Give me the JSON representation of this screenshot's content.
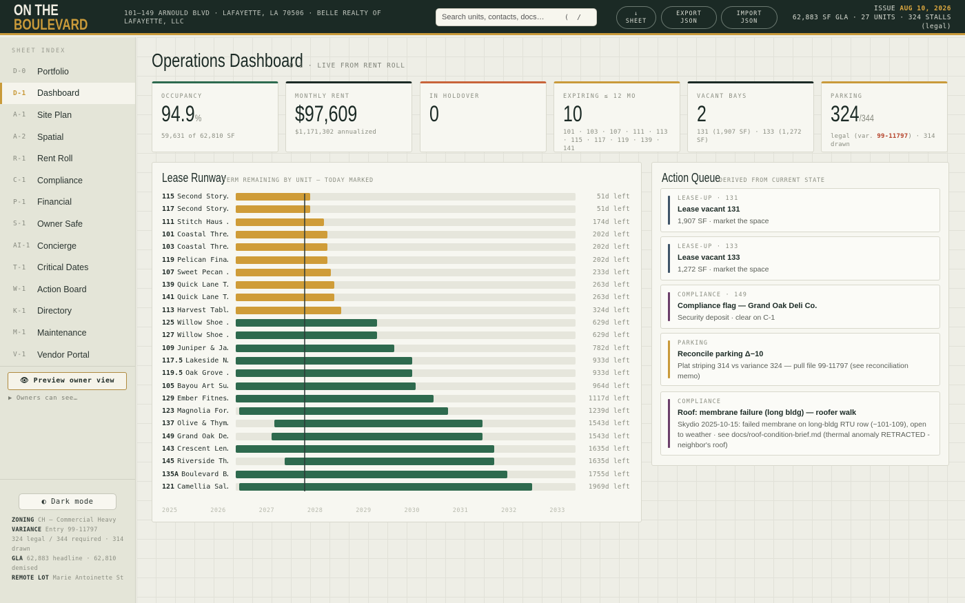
{
  "header": {
    "logo_line1": "ON THE",
    "logo_line2": "BOULEVARD",
    "address": "101–149 ARNOULD BLVD · LAFAYETTE, LA 70506 · BELLE REALTY OF LAFAYETTE, LLC",
    "search_placeholder": "Search units, contacts, docs…",
    "search_shortcut": "( /",
    "buttons": [
      {
        "line1": "↓",
        "line2": "SHEET"
      },
      {
        "line1": "EXPORT",
        "line2": "JSON"
      },
      {
        "line1": "IMPORT",
        "line2": "JSON"
      }
    ],
    "issue_label": "ISSUE",
    "issue_date": "AUG 10, 2026",
    "stats_line": "62,883 SF GLA · 27 UNITS · 324 STALLS",
    "stats_note": "(legal)"
  },
  "sidebar": {
    "heading": "SHEET INDEX",
    "items": [
      {
        "code": "D-0",
        "label": "Portfolio",
        "active": false
      },
      {
        "code": "D-1",
        "label": "Dashboard",
        "active": true
      },
      {
        "code": "A-1",
        "label": "Site Plan",
        "active": false
      },
      {
        "code": "A-2",
        "label": "Spatial",
        "active": false
      },
      {
        "code": "R-1",
        "label": "Rent Roll",
        "active": false
      },
      {
        "code": "C-1",
        "label": "Compliance",
        "active": false
      },
      {
        "code": "P-1",
        "label": "Financial",
        "active": false
      },
      {
        "code": "S-1",
        "label": "Owner Safe",
        "active": false
      },
      {
        "code": "AI-1",
        "label": "Concierge",
        "active": false
      },
      {
        "code": "T-1",
        "label": "Critical Dates",
        "active": false
      },
      {
        "code": "W-1",
        "label": "Action Board",
        "active": false
      },
      {
        "code": "K-1",
        "label": "Directory",
        "active": false
      },
      {
        "code": "M-1",
        "label": "Maintenance",
        "active": false
      },
      {
        "code": "V-1",
        "label": "Vendor Portal",
        "active": false
      }
    ],
    "preview_button": "👁 Preview owner view",
    "owners_toggle": "▶ Owners can see…",
    "dark_mode": "◐ Dark mode",
    "meta": {
      "zoning_label": "ZONING",
      "zoning_value": "CH — Commercial Heavy",
      "variance_label": "VARIANCE",
      "variance_value": "Entry 99-11797",
      "variance_detail": "324 legal / 344 required · 314 drawn",
      "gla_label": "GLA",
      "gla_value": "62,883 headline · 62,810 demised",
      "remote_label": "REMOTE LOT",
      "remote_value": "Marie Antoinette St"
    }
  },
  "page": {
    "title": "Operations Dashboard",
    "subtitle": "D-1 · LIVE FROM RENT ROLL"
  },
  "kpis": [
    {
      "label": "OCCUPANCY",
      "value": "94.9",
      "unit": "%",
      "sub": "59,631 of 62,810 SF",
      "accent": "#2d6a4f"
    },
    {
      "label": "MONTHLY RENT",
      "value": "$97,609",
      "unit": "",
      "sub": "$1,171,302 annualized",
      "accent": "#1b2a25"
    },
    {
      "label": "IN HOLDOVER",
      "value": "0",
      "unit": "",
      "sub": "",
      "accent": "#c8643a"
    },
    {
      "label": "EXPIRING ≤ 12 MO",
      "value": "10",
      "unit": "",
      "sub": "101 · 103 · 107 · 111 · 113 · 115 · 117 · 119 · 139 · 141",
      "accent": "#c99a3a"
    },
    {
      "label": "VACANT BAYS",
      "value": "2",
      "unit": "",
      "sub": "131 (1,907 SF) · 133 (1,272 SF)",
      "accent": "#1b2a25"
    },
    {
      "label": "PARKING",
      "value": "324",
      "unit": "/344",
      "sub_pre": "legal (var. ",
      "sub_red": "99-11797",
      "sub_post": ") · 314 drawn",
      "accent": "#c99a3a"
    }
  ],
  "runway": {
    "title": "Lease Runway",
    "subtitle": "TERM REMAINING BY UNIT — TODAY MARKED",
    "colors": {
      "short": "#cf9c38",
      "long": "#2e6a4e"
    },
    "years": [
      "2025",
      "2026",
      "2027",
      "2028",
      "2029",
      "2030",
      "2031",
      "2032",
      "2033"
    ],
    "rows": [
      {
        "unit": "115",
        "tenant": "Second Story…",
        "start": 0.0,
        "end": 0.22,
        "remaining": "51d left",
        "tone": "short"
      },
      {
        "unit": "117",
        "tenant": "Second Story…",
        "start": 0.0,
        "end": 0.22,
        "remaining": "51d left",
        "tone": "short"
      },
      {
        "unit": "111",
        "tenant": "Stitch Haus …",
        "start": 0.0,
        "end": 0.26,
        "remaining": "174d left",
        "tone": "short"
      },
      {
        "unit": "101",
        "tenant": "Coastal Thre…",
        "start": 0.0,
        "end": 0.27,
        "remaining": "202d left",
        "tone": "short"
      },
      {
        "unit": "103",
        "tenant": "Coastal Thre…",
        "start": 0.0,
        "end": 0.27,
        "remaining": "202d left",
        "tone": "short"
      },
      {
        "unit": "119",
        "tenant": "Pelican Fina…",
        "start": 0.0,
        "end": 0.27,
        "remaining": "202d left",
        "tone": "short"
      },
      {
        "unit": "107",
        "tenant": "Sweet Pecan …",
        "start": 0.0,
        "end": 0.28,
        "remaining": "233d left",
        "tone": "short"
      },
      {
        "unit": "139",
        "tenant": "Quick Lane T…",
        "start": 0.0,
        "end": 0.29,
        "remaining": "263d left",
        "tone": "short"
      },
      {
        "unit": "141",
        "tenant": "Quick Lane T…",
        "start": 0.0,
        "end": 0.29,
        "remaining": "263d left",
        "tone": "short"
      },
      {
        "unit": "113",
        "tenant": "Harvest Tabl…",
        "start": 0.0,
        "end": 0.31,
        "remaining": "324d left",
        "tone": "short"
      },
      {
        "unit": "125",
        "tenant": "Willow Shoe …",
        "start": 0.0,
        "end": 0.415,
        "remaining": "629d left",
        "tone": "long"
      },
      {
        "unit": "127",
        "tenant": "Willow Shoe …",
        "start": 0.0,
        "end": 0.415,
        "remaining": "629d left",
        "tone": "long"
      },
      {
        "unit": "109",
        "tenant": "Juniper & Ja…",
        "start": 0.0,
        "end": 0.467,
        "remaining": "782d left",
        "tone": "long"
      },
      {
        "unit": "117.5",
        "tenant": "Lakeside N…",
        "start": 0.0,
        "end": 0.52,
        "remaining": "933d left",
        "tone": "long"
      },
      {
        "unit": "119.5",
        "tenant": "Oak Grove …",
        "start": 0.0,
        "end": 0.52,
        "remaining": "933d left",
        "tone": "long"
      },
      {
        "unit": "105",
        "tenant": "Bayou Art Su…",
        "start": 0.0,
        "end": 0.53,
        "remaining": "964d left",
        "tone": "long"
      },
      {
        "unit": "129",
        "tenant": "Ember Fitnes…",
        "start": 0.0,
        "end": 0.583,
        "remaining": "1117d left",
        "tone": "long"
      },
      {
        "unit": "123",
        "tenant": "Magnolia For…",
        "start": 0.01,
        "end": 0.625,
        "remaining": "1239d left",
        "tone": "long"
      },
      {
        "unit": "137",
        "tenant": "Olive & Thym…",
        "start": 0.113,
        "end": 0.727,
        "remaining": "1543d left",
        "tone": "long"
      },
      {
        "unit": "149",
        "tenant": "Grand Oak De…",
        "start": 0.105,
        "end": 0.727,
        "remaining": "1543d left",
        "tone": "long"
      },
      {
        "unit": "143",
        "tenant": "Crescent Len…",
        "start": 0.0,
        "end": 0.76,
        "remaining": "1635d left",
        "tone": "long"
      },
      {
        "unit": "145",
        "tenant": "Riverside Th…",
        "start": 0.145,
        "end": 0.76,
        "remaining": "1635d left",
        "tone": "long"
      },
      {
        "unit": "135A",
        "tenant": "Boulevard B…",
        "start": 0.0,
        "end": 0.8,
        "remaining": "1755d left",
        "tone": "long"
      },
      {
        "unit": "121",
        "tenant": "Camellia Sal…",
        "start": 0.01,
        "end": 0.872,
        "remaining": "1969d left",
        "tone": "long"
      }
    ]
  },
  "queue": {
    "title": "Action Queue",
    "subtitle": "DERIVED FROM CURRENT STATE",
    "items": [
      {
        "tag": "LEASE-UP · 131",
        "title": "Lease vacant 131",
        "desc": "1,907 SF · market the space",
        "color": "#3f5468"
      },
      {
        "tag": "LEASE-UP · 133",
        "title": "Lease vacant 133",
        "desc": "1,272 SF · market the space",
        "color": "#3f5468"
      },
      {
        "tag": "COMPLIANCE · 149",
        "title": "Compliance flag — Grand Oak Deli Co.",
        "desc": "Security deposit · clear on C-1",
        "color": "#6b3f6a"
      },
      {
        "tag": "PARKING",
        "title": "Reconcile parking Δ−10",
        "desc": "Plat striping 314 vs variance 324 — pull file 99-11797 (see reconciliation memo)",
        "color": "#c99a3a"
      },
      {
        "tag": "COMPLIANCE",
        "title": "Roof: membrane failure (long bldg) — roofer walk",
        "desc": "Skydio 2025-10-15: failed membrane on long-bldg RTU row (~101-109), open to weather · see docs/roof-condition-brief.md (thermal anomaly RETRACTED -neighbor's roof)",
        "color": "#6b3f6a"
      }
    ]
  }
}
